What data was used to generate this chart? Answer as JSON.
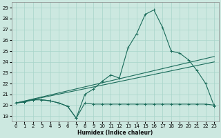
{
  "title": "",
  "xlabel": "Humidex (Indice chaleur)",
  "bg_color": "#cce8e0",
  "line_color": "#1a6b5a",
  "grid_color": "#a8d4ca",
  "xlim": [
    -0.5,
    23.5
  ],
  "ylim": [
    18.5,
    29.5
  ],
  "xticks": [
    0,
    1,
    2,
    3,
    4,
    5,
    6,
    7,
    8,
    9,
    10,
    11,
    12,
    13,
    14,
    15,
    16,
    17,
    18,
    19,
    20,
    21,
    22,
    23
  ],
  "yticks": [
    19,
    20,
    21,
    22,
    23,
    24,
    25,
    26,
    27,
    28,
    29
  ],
  "line1": {
    "x": [
      0,
      1,
      2,
      3,
      4,
      5,
      6,
      7,
      8,
      9,
      10,
      11,
      12,
      13,
      14,
      15,
      16,
      17,
      18,
      19,
      20,
      21,
      22,
      23
    ],
    "y": [
      20.2,
      20.3,
      20.5,
      20.5,
      20.4,
      20.2,
      19.9,
      18.8,
      20.2,
      20.1,
      20.1,
      20.1,
      20.1,
      20.1,
      20.1,
      20.1,
      20.1,
      20.1,
      20.1,
      20.1,
      20.1,
      20.1,
      20.1,
      20.0
    ]
  },
  "line2": {
    "x": [
      0,
      23
    ],
    "y": [
      20.2,
      24.5
    ]
  },
  "line3": {
    "x": [
      0,
      23
    ],
    "y": [
      20.2,
      24.0
    ]
  },
  "line4": {
    "x": [
      0,
      1,
      2,
      3,
      4,
      5,
      6,
      7,
      8,
      9,
      10,
      11,
      12,
      13,
      14,
      15,
      16,
      17,
      18,
      19,
      20,
      21,
      22,
      23
    ],
    "y": [
      20.2,
      20.3,
      20.5,
      20.5,
      20.4,
      20.2,
      19.9,
      18.8,
      21.0,
      21.5,
      22.2,
      22.8,
      22.5,
      25.3,
      26.6,
      28.4,
      28.8,
      27.2,
      25.0,
      24.8,
      24.2,
      23.2,
      22.0,
      19.9
    ]
  }
}
